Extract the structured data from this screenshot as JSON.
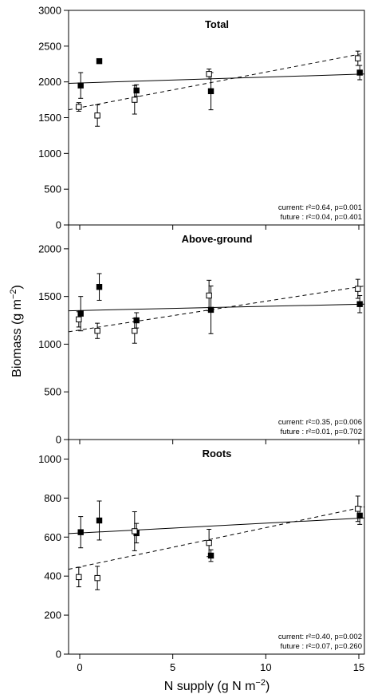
{
  "chart_data": {
    "type": "scatter",
    "ylabel_main": "Biomass (g m",
    "ylabel_sup": "−2",
    "ylabel_close": ")",
    "xlabel_main": "N supply (g N m",
    "xlabel_sup": "−2",
    "xlabel_close": ")",
    "xlim": [
      -0.6,
      15.3
    ],
    "xticks": [
      0,
      5,
      10,
      15
    ],
    "marker_legend": {
      "filled": "current",
      "open": "future"
    },
    "panels": [
      {
        "title": "Total",
        "ylim": [
          0,
          3000
        ],
        "yticks": [
          0,
          500,
          1000,
          1500,
          2000,
          2500,
          3000
        ],
        "series": [
          {
            "key": "current",
            "marker": "filled",
            "line": "solid",
            "x": [
              0,
              1,
              3,
              7,
              15
            ],
            "y": [
              1950,
              2290,
              1880,
              1870,
              2130
            ],
            "err": [
              180,
              0,
              80,
              260,
              100
            ],
            "fit": [
              1980,
              2110
            ]
          },
          {
            "key": "future",
            "marker": "open",
            "line": "dashed",
            "x": [
              0,
              1,
              3,
              7,
              15
            ],
            "y": [
              1650,
              1530,
              1750,
              2110,
              2330
            ],
            "err": [
              60,
              150,
              200,
              70,
              100
            ],
            "fit": [
              1610,
              2400
            ]
          }
        ],
        "stats": [
          "current: r²=0.64, p=0.001",
          "future : r²=0.04, p=0.401"
        ]
      },
      {
        "title": "Above-ground",
        "ylim": [
          0,
          2250
        ],
        "yticks": [
          0,
          500,
          1000,
          1500,
          2000
        ],
        "series": [
          {
            "key": "current",
            "marker": "filled",
            "line": "solid",
            "x": [
              0,
              1,
              3,
              7,
              15
            ],
            "y": [
              1320,
              1600,
              1250,
              1360,
              1420
            ],
            "err": [
              180,
              140,
              80,
              250,
              90
            ],
            "fit": [
              1350,
              1420
            ]
          },
          {
            "key": "future",
            "marker": "open",
            "line": "dashed",
            "x": [
              0,
              1,
              3,
              7,
              15
            ],
            "y": [
              1260,
              1140,
              1140,
              1510,
              1580
            ],
            "err": [
              80,
              80,
              130,
              160,
              100
            ],
            "fit": [
              1130,
              1610
            ]
          }
        ],
        "stats": [
          "current: r²=0.35, p=0.006",
          "future : r²=0.01, p=0.702"
        ]
      },
      {
        "title": "Roots",
        "ylim": [
          0,
          1100
        ],
        "yticks": [
          0,
          200,
          400,
          600,
          800,
          1000
        ],
        "series": [
          {
            "key": "current",
            "marker": "filled",
            "line": "solid",
            "x": [
              0,
              1,
              3,
              7,
              15
            ],
            "y": [
              625,
              685,
              620,
              505,
              710
            ],
            "err": [
              80,
              100,
              50,
              30,
              45
            ],
            "fit": [
              618,
              698
            ]
          },
          {
            "key": "future",
            "marker": "open",
            "line": "dashed",
            "x": [
              0,
              1,
              3,
              7,
              15
            ],
            "y": [
              395,
              390,
              630,
              570,
              745
            ],
            "err": [
              50,
              60,
              100,
              70,
              65
            ],
            "fit": [
              435,
              755
            ]
          }
        ],
        "stats": [
          "current: r²=0.40, p=0.002",
          "future : r²=0.07, p=0.260"
        ]
      }
    ]
  }
}
